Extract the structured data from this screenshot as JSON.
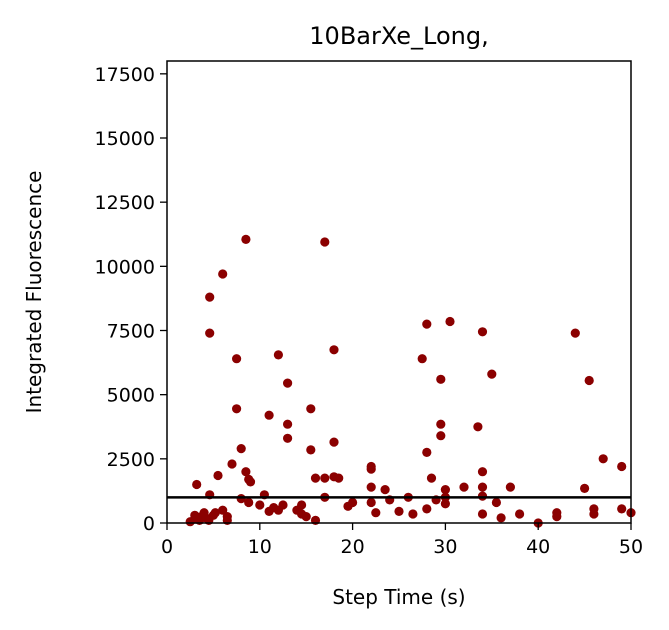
{
  "chart_data": {
    "type": "scatter",
    "title": "10BarXe_Long,",
    "xlabel": "Step Time (s)",
    "ylabel": "Integrated Fluorescence",
    "xlim": [
      0,
      50
    ],
    "ylim": [
      0,
      18000
    ],
    "xticks": [
      "0",
      "10",
      "20",
      "30",
      "40",
      "50"
    ],
    "yticks": [
      "0",
      "2500",
      "5000",
      "7500",
      "10000",
      "12500",
      "15000",
      "17500"
    ],
    "xtick_values": [
      0,
      10,
      20,
      30,
      40,
      50
    ],
    "ytick_values": [
      0,
      2500,
      5000,
      7500,
      10000,
      12500,
      15000,
      17500
    ],
    "grid": false,
    "marker_color": "#8b0000",
    "threshold_line": {
      "y": 1000,
      "color": "#000000"
    },
    "points": [
      [
        2.5,
        50
      ],
      [
        3.0,
        150
      ],
      [
        3.0,
        300
      ],
      [
        3.2,
        1500
      ],
      [
        3.5,
        100
      ],
      [
        3.7,
        250
      ],
      [
        4.0,
        400
      ],
      [
        4.2,
        200
      ],
      [
        4.5,
        100
      ],
      [
        4.6,
        1100
      ],
      [
        4.6,
        8800
      ],
      [
        4.6,
        7400
      ],
      [
        5.0,
        300
      ],
      [
        5.2,
        400
      ],
      [
        5.5,
        1850
      ],
      [
        6.0,
        9700
      ],
      [
        6.0,
        500
      ],
      [
        6.5,
        250
      ],
      [
        6.5,
        100
      ],
      [
        7.0,
        2300
      ],
      [
        7.5,
        6400
      ],
      [
        7.5,
        4450
      ],
      [
        8.0,
        2900
      ],
      [
        8.0,
        950
      ],
      [
        8.5,
        11050
      ],
      [
        8.5,
        2000
      ],
      [
        8.8,
        1700
      ],
      [
        8.8,
        800
      ],
      [
        9.0,
        1600
      ],
      [
        10.0,
        700
      ],
      [
        10.5,
        1100
      ],
      [
        11.0,
        4200
      ],
      [
        11.0,
        450
      ],
      [
        11.5,
        600
      ],
      [
        12.0,
        6550
      ],
      [
        12.0,
        500
      ],
      [
        12.5,
        700
      ],
      [
        13.0,
        5450
      ],
      [
        13.0,
        3850
      ],
      [
        13.0,
        3300
      ],
      [
        14.0,
        500
      ],
      [
        14.5,
        350
      ],
      [
        14.5,
        700
      ],
      [
        15.0,
        250
      ],
      [
        15.5,
        4450
      ],
      [
        15.5,
        2850
      ],
      [
        16.0,
        1750
      ],
      [
        16.0,
        100
      ],
      [
        17.0,
        10950
      ],
      [
        17.0,
        1750
      ],
      [
        17.0,
        1000
      ],
      [
        18.0,
        6750
      ],
      [
        18.0,
        3150
      ],
      [
        18.0,
        1800
      ],
      [
        18.5,
        1750
      ],
      [
        19.5,
        650
      ],
      [
        20.0,
        800
      ],
      [
        22.0,
        2200
      ],
      [
        22.0,
        2100
      ],
      [
        22.0,
        1400
      ],
      [
        22.0,
        800
      ],
      [
        22.5,
        400
      ],
      [
        23.5,
        1300
      ],
      [
        24.0,
        900
      ],
      [
        25.0,
        450
      ],
      [
        26.0,
        1000
      ],
      [
        26.5,
        350
      ],
      [
        27.5,
        6400
      ],
      [
        28.0,
        7750
      ],
      [
        28.0,
        2750
      ],
      [
        28.0,
        550
      ],
      [
        28.5,
        1750
      ],
      [
        29.0,
        900
      ],
      [
        29.5,
        5600
      ],
      [
        29.5,
        3850
      ],
      [
        29.5,
        3400
      ],
      [
        30.0,
        1300
      ],
      [
        30.0,
        1000
      ],
      [
        30.5,
        7850
      ],
      [
        30.0,
        750
      ],
      [
        32.0,
        1400
      ],
      [
        33.5,
        3750
      ],
      [
        34.0,
        7450
      ],
      [
        34.0,
        2000
      ],
      [
        34.0,
        1400
      ],
      [
        34.0,
        1050
      ],
      [
        34.0,
        350
      ],
      [
        35.0,
        5800
      ],
      [
        35.5,
        800
      ],
      [
        36.0,
        200
      ],
      [
        37.0,
        1400
      ],
      [
        38.0,
        350
      ],
      [
        40.0,
        0
      ],
      [
        42.0,
        400
      ],
      [
        42.0,
        250
      ],
      [
        44.0,
        7400
      ],
      [
        45.0,
        1350
      ],
      [
        45.5,
        5550
      ],
      [
        46.0,
        550
      ],
      [
        46.0,
        350
      ],
      [
        47.0,
        2500
      ],
      [
        49.0,
        2200
      ],
      [
        49.0,
        550
      ],
      [
        50.0,
        400
      ]
    ]
  }
}
